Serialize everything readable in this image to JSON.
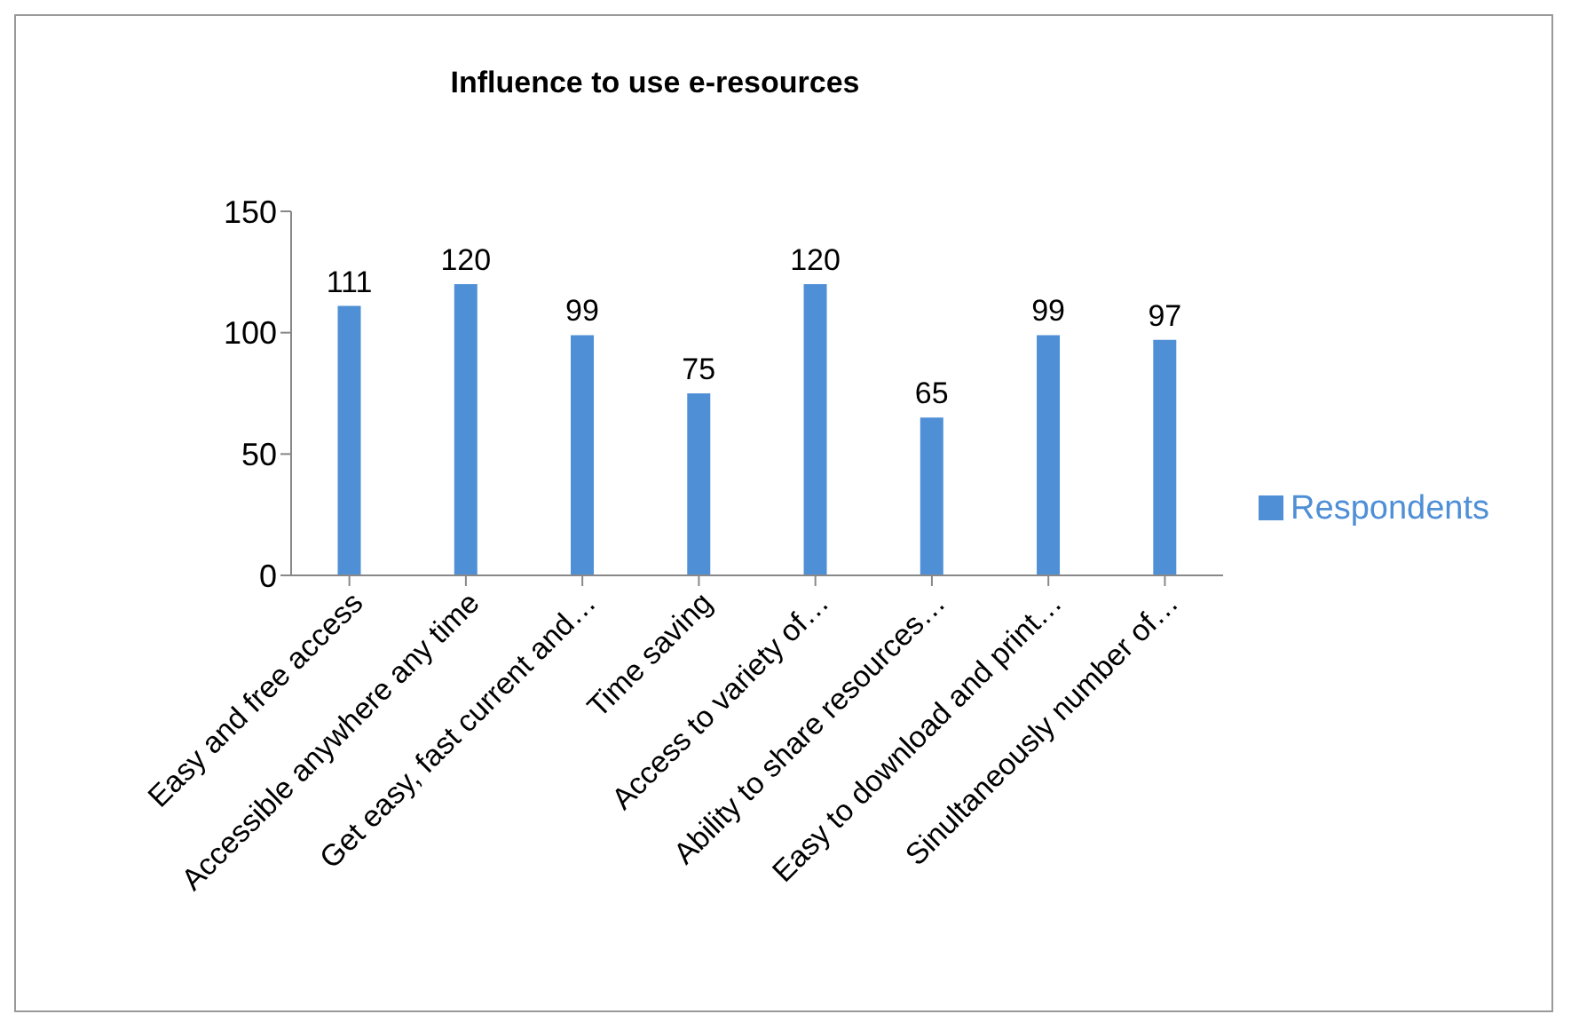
{
  "chart_data": {
    "type": "bar",
    "title": "Influence to use e-resources",
    "categories": [
      "Easy and free access",
      "Accessible anywhere any time",
      "Get easy, fast current and…",
      "Time saving",
      "Access to variety of…",
      "Ability to share resources…",
      "Easy to download and print…",
      "Sinultaneously number of…"
    ],
    "series": [
      {
        "name": "Respondents",
        "color": "#4f8fd6",
        "values": [
          111,
          120,
          99,
          75,
          120,
          65,
          99,
          97
        ]
      }
    ],
    "ylim": [
      0,
      150
    ],
    "yticks": [
      0,
      50,
      100,
      150
    ],
    "grid": false,
    "legend": "right",
    "data_labels": true
  }
}
